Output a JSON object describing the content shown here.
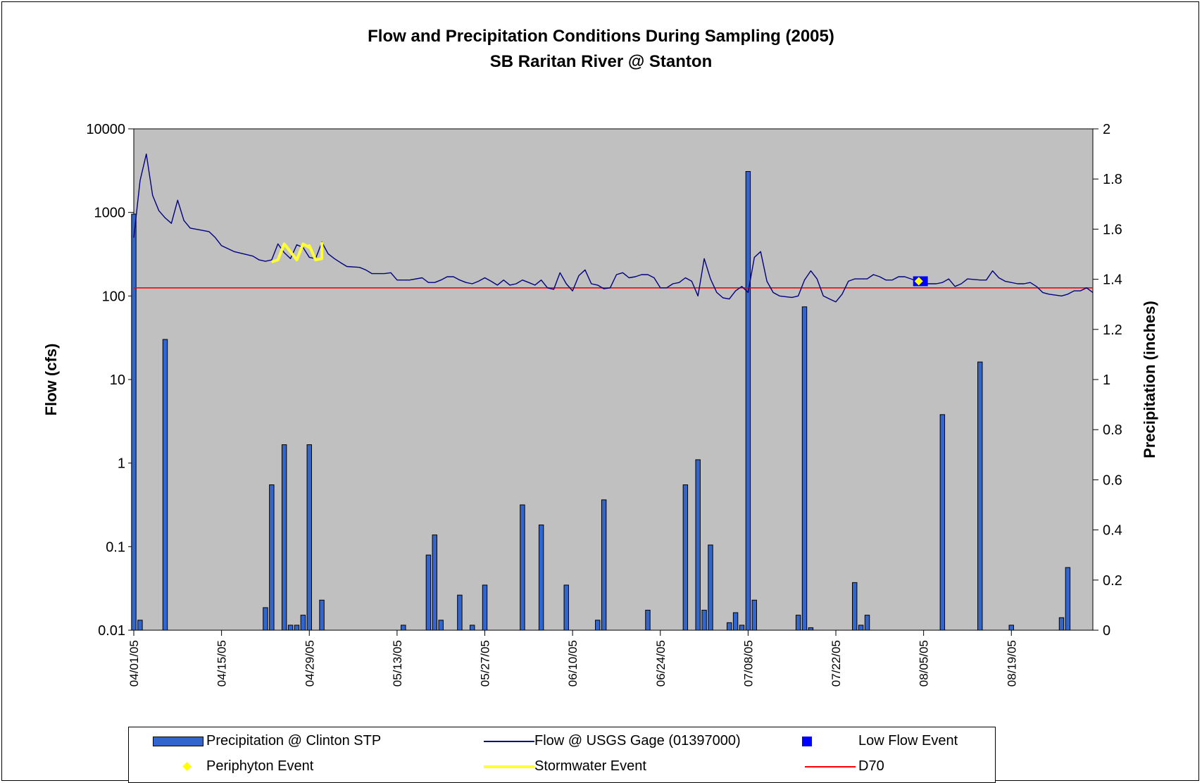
{
  "chart_data": {
    "type": "bar+line",
    "title": "Flow and Precipitation Conditions During Sampling (2005)",
    "subtitle": "SB Raritan River @ Stanton",
    "ylabel": "Flow (cfs)",
    "y2label": "Precipitation (inches)",
    "y_scale": "log",
    "ylim": [
      0.01,
      10000
    ],
    "y_ticks": [
      "0.01",
      "0.1",
      "1",
      "10",
      "100",
      "1000",
      "10000"
    ],
    "y2lim": [
      0,
      2
    ],
    "y2_ticks": [
      "0",
      "0.2",
      "0.4",
      "0.6",
      "0.8",
      "1",
      "1.2",
      "1.4",
      "1.6",
      "1.8",
      "2"
    ],
    "x_ticks": [
      "04/01/05",
      "04/15/05",
      "04/29/05",
      "05/13/05",
      "05/27/05",
      "06/10/05",
      "06/24/05",
      "07/08/05",
      "07/22/05",
      "08/05/05",
      "08/19/05"
    ],
    "x_range": [
      "04/01/05",
      "09/01/05"
    ],
    "grid": false,
    "legend_position": "bottom",
    "colors": {
      "plot_bg": "#c0c0c0",
      "precip_bar": "#3366cc",
      "flow_line": "#000080",
      "low_flow": "#0000ff",
      "periphyton": "#ffff00",
      "stormwater": "#ffff33",
      "d70": "#ff0000"
    },
    "legend": [
      {
        "label": "Precipitation @  Clinton STP",
        "symbol": "bar"
      },
      {
        "label": "Flow @ USGS Gage (01397000)",
        "symbol": "line"
      },
      {
        "label": "Low Flow Event",
        "symbol": "square"
      },
      {
        "label": "Periphyton Event",
        "symbol": "diamond"
      },
      {
        "label": "Stormwater Event",
        "symbol": "thick-line"
      },
      {
        "label": "D70",
        "symbol": "red-line"
      }
    ],
    "series": [
      {
        "name": "Precipitation @  Clinton STP",
        "axis": "secondary",
        "type": "bar",
        "points": [
          [
            "04/01/05",
            1.66
          ],
          [
            "04/02/05",
            0.04
          ],
          [
            "04/06/05",
            1.16
          ],
          [
            "04/22/05",
            0.09
          ],
          [
            "04/23/05",
            0.58
          ],
          [
            "04/25/05",
            0.74
          ],
          [
            "04/26/05",
            0.02
          ],
          [
            "04/27/05",
            0.02
          ],
          [
            "04/28/05",
            0.06
          ],
          [
            "04/29/05",
            0.74
          ],
          [
            "05/01/05",
            0.12
          ],
          [
            "05/14/05",
            0.02
          ],
          [
            "05/18/05",
            0.3
          ],
          [
            "05/19/05",
            0.38
          ],
          [
            "05/20/05",
            0.04
          ],
          [
            "05/23/05",
            0.14
          ],
          [
            "05/25/05",
            0.02
          ],
          [
            "05/27/05",
            0.18
          ],
          [
            "06/02/05",
            0.5
          ],
          [
            "06/05/05",
            0.42
          ],
          [
            "06/09/05",
            0.18
          ],
          [
            "06/14/05",
            0.04
          ],
          [
            "06/15/05",
            0.52
          ],
          [
            "06/22/05",
            0.08
          ],
          [
            "06/28/05",
            0.58
          ],
          [
            "06/30/05",
            0.68
          ],
          [
            "07/01/05",
            0.08
          ],
          [
            "07/02/05",
            0.34
          ],
          [
            "07/05/05",
            0.03
          ],
          [
            "07/06/05",
            0.07
          ],
          [
            "07/07/05",
            0.02
          ],
          [
            "07/08/05",
            1.83
          ],
          [
            "07/09/05",
            0.12
          ],
          [
            "07/16/05",
            0.06
          ],
          [
            "07/17/05",
            1.29
          ],
          [
            "07/18/05",
            0.01
          ],
          [
            "07/25/05",
            0.19
          ],
          [
            "07/26/05",
            0.02
          ],
          [
            "07/27/05",
            0.06
          ],
          [
            "08/08/05",
            0.86
          ],
          [
            "08/14/05",
            1.07
          ],
          [
            "08/19/05",
            0.02
          ],
          [
            "08/27/05",
            0.05
          ],
          [
            "08/28/05",
            0.25
          ]
        ]
      },
      {
        "name": "Flow @ USGS Gage (01397000)",
        "axis": "primary",
        "type": "line",
        "points": [
          [
            "04/01/05",
            500
          ],
          [
            "04/02/05",
            2400
          ],
          [
            "04/03/05",
            5000
          ],
          [
            "04/04/05",
            1600
          ],
          [
            "04/05/05",
            1050
          ],
          [
            "04/06/05",
            860
          ],
          [
            "04/07/05",
            740
          ],
          [
            "04/08/05",
            1400
          ],
          [
            "04/09/05",
            800
          ],
          [
            "04/10/05",
            650
          ],
          [
            "04/13/05",
            590
          ],
          [
            "04/14/05",
            500
          ],
          [
            "04/15/05",
            400
          ],
          [
            "04/17/05",
            340
          ],
          [
            "04/20/05",
            300
          ],
          [
            "04/21/05",
            270
          ],
          [
            "04/22/05",
            260
          ],
          [
            "04/23/05",
            270
          ],
          [
            "04/24/05",
            420
          ],
          [
            "04/25/05",
            330
          ],
          [
            "04/26/05",
            280
          ],
          [
            "04/27/05",
            410
          ],
          [
            "04/28/05",
            380
          ],
          [
            "04/29/05",
            290
          ],
          [
            "04/30/05",
            280
          ],
          [
            "05/01/05",
            440
          ],
          [
            "05/02/05",
            320
          ],
          [
            "05/03/05",
            280
          ],
          [
            "05/04/05",
            250
          ],
          [
            "05/05/05",
            225
          ],
          [
            "05/07/05",
            220
          ],
          [
            "05/08/05",
            205
          ],
          [
            "05/09/05",
            185
          ],
          [
            "05/11/05",
            185
          ],
          [
            "05/12/05",
            190
          ],
          [
            "05/13/05",
            155
          ],
          [
            "05/15/05",
            155
          ],
          [
            "05/17/05",
            165
          ],
          [
            "05/18/05",
            145
          ],
          [
            "05/19/05",
            145
          ],
          [
            "05/20/05",
            155
          ],
          [
            "05/21/05",
            170
          ],
          [
            "05/22/05",
            170
          ],
          [
            "05/23/05",
            155
          ],
          [
            "05/24/05",
            145
          ],
          [
            "05/25/05",
            140
          ],
          [
            "05/26/05",
            150
          ],
          [
            "05/27/05",
            165
          ],
          [
            "05/28/05",
            150
          ],
          [
            "05/29/05",
            135
          ],
          [
            "05/30/05",
            155
          ],
          [
            "05/31/05",
            135
          ],
          [
            "06/01/05",
            140
          ],
          [
            "06/02/05",
            155
          ],
          [
            "06/03/05",
            145
          ],
          [
            "06/04/05",
            135
          ],
          [
            "06/05/05",
            155
          ],
          [
            "06/06/05",
            125
          ],
          [
            "06/07/05",
            120
          ],
          [
            "06/08/05",
            190
          ],
          [
            "06/09/05",
            140
          ],
          [
            "06/10/05",
            115
          ],
          [
            "06/11/05",
            175
          ],
          [
            "06/12/05",
            205
          ],
          [
            "06/13/05",
            140
          ],
          [
            "06/14/05",
            135
          ],
          [
            "06/15/05",
            122
          ],
          [
            "06/16/05",
            125
          ],
          [
            "06/17/05",
            180
          ],
          [
            "06/18/05",
            190
          ],
          [
            "06/19/05",
            165
          ],
          [
            "06/20/05",
            170
          ],
          [
            "06/21/05",
            180
          ],
          [
            "06/22/05",
            180
          ],
          [
            "06/23/05",
            165
          ],
          [
            "06/24/05",
            125
          ],
          [
            "06/25/05",
            125
          ],
          [
            "06/26/05",
            140
          ],
          [
            "06/27/05",
            145
          ],
          [
            "06/28/05",
            165
          ],
          [
            "06/29/05",
            150
          ],
          [
            "06/30/05",
            100
          ],
          [
            "07/01/05",
            280
          ],
          [
            "07/02/05",
            160
          ],
          [
            "07/03/05",
            110
          ],
          [
            "07/04/05",
            95
          ],
          [
            "07/05/05",
            92
          ],
          [
            "07/06/05",
            115
          ],
          [
            "07/07/05",
            130
          ],
          [
            "07/08/05",
            110
          ],
          [
            "07/09/05",
            290
          ],
          [
            "07/10/05",
            340
          ],
          [
            "07/11/05",
            150
          ],
          [
            "07/12/05",
            110
          ],
          [
            "07/13/05",
            100
          ],
          [
            "07/14/05",
            98
          ],
          [
            "07/15/05",
            96
          ],
          [
            "07/16/05",
            100
          ],
          [
            "07/17/05",
            155
          ],
          [
            "07/18/05",
            200
          ],
          [
            "07/19/05",
            160
          ],
          [
            "07/20/05",
            100
          ],
          [
            "07/21/05",
            92
          ],
          [
            "07/22/05",
            85
          ],
          [
            "07/23/05",
            105
          ],
          [
            "07/24/05",
            150
          ],
          [
            "07/25/05",
            160
          ],
          [
            "07/27/05",
            160
          ],
          [
            "07/28/05",
            180
          ],
          [
            "07/29/05",
            170
          ],
          [
            "07/30/05",
            155
          ],
          [
            "07/31/05",
            155
          ],
          [
            "08/01/05",
            170
          ],
          [
            "08/02/05",
            170
          ],
          [
            "08/03/05",
            160
          ],
          [
            "08/04/05",
            150
          ],
          [
            "08/05/05",
            140
          ],
          [
            "08/06/05",
            140
          ],
          [
            "08/07/05",
            140
          ],
          [
            "08/08/05",
            145
          ],
          [
            "08/09/05",
            160
          ],
          [
            "08/10/05",
            130
          ],
          [
            "08/11/05",
            140
          ],
          [
            "08/12/05",
            160
          ],
          [
            "08/14/05",
            155
          ],
          [
            "08/15/05",
            155
          ],
          [
            "08/16/05",
            200
          ],
          [
            "08/17/05",
            165
          ],
          [
            "08/18/05",
            150
          ],
          [
            "08/20/05",
            140
          ],
          [
            "08/21/05",
            140
          ],
          [
            "08/22/05",
            145
          ],
          [
            "08/23/05",
            130
          ],
          [
            "08/24/05",
            110
          ],
          [
            "08/25/05",
            105
          ],
          [
            "08/27/05",
            100
          ],
          [
            "08/28/05",
            105
          ],
          [
            "08/29/05",
            115
          ],
          [
            "08/30/05",
            115
          ],
          [
            "08/31/05",
            125
          ],
          [
            "09/01/05",
            110
          ]
        ]
      },
      {
        "name": "Stormwater Event",
        "axis": "primary",
        "type": "line",
        "points": [
          [
            "04/23/05",
            255
          ],
          [
            "04/24/05",
            270
          ],
          [
            "04/25/05",
            420
          ],
          [
            "04/26/05",
            340
          ],
          [
            "04/27/05",
            270
          ],
          [
            "04/28/05",
            420
          ],
          [
            "04/29/05",
            380
          ],
          [
            "04/29/05",
            400
          ],
          [
            "04/30/05",
            270
          ],
          [
            "05/01/05",
            280
          ],
          [
            "05/01/05",
            440
          ]
        ]
      },
      {
        "name": "Low Flow Event",
        "axis": "primary",
        "type": "marker",
        "points": [
          [
            "08/04/05",
            150
          ],
          [
            "08/05/05",
            150
          ]
        ]
      },
      {
        "name": "Periphyton Event",
        "axis": "primary",
        "type": "marker",
        "points": [
          [
            "08/04/05",
            150
          ]
        ]
      },
      {
        "name": "D70",
        "axis": "primary",
        "type": "hline",
        "value": 125
      }
    ]
  }
}
